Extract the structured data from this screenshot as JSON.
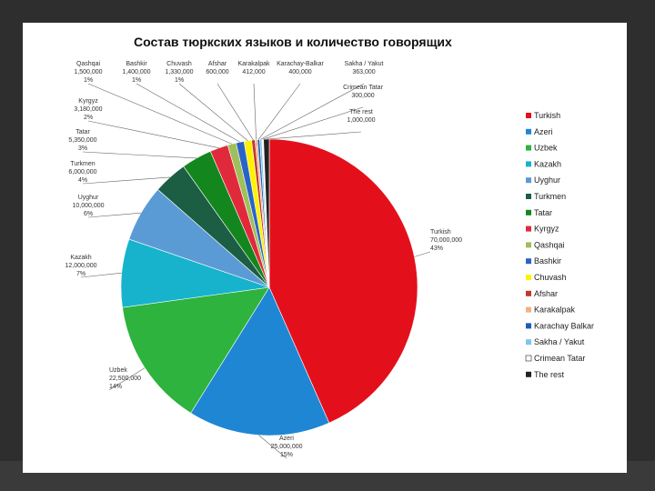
{
  "chart_data": {
    "type": "pie",
    "title": "Состав тюркских языков и количество говорящих",
    "slices": [
      {
        "name": "Turkish",
        "value": 70000000,
        "pct_label": "43%",
        "value_label": "70,000,000",
        "color": "#e3101c"
      },
      {
        "name": "Azeri",
        "value": 25000000,
        "pct_label": "15%",
        "value_label": "25,000,000",
        "color": "#1f86d3"
      },
      {
        "name": "Uzbek",
        "value": 22500000,
        "pct_label": "14%",
        "value_label": "22,500,000",
        "color": "#2db33e"
      },
      {
        "name": "Kazakh",
        "value": 12000000,
        "pct_label": "7%",
        "value_label": "12,000,000",
        "color": "#17b3cc"
      },
      {
        "name": "Uyghur",
        "value": 10000000,
        "pct_label": "6%",
        "value_label": "10,000,000",
        "color": "#5b9bd5"
      },
      {
        "name": "Turkmen",
        "value": 6000000,
        "pct_label": "4%",
        "value_label": "6,000,000",
        "color": "#1b5e44"
      },
      {
        "name": "Tatar",
        "value": 5350000,
        "pct_label": "3%",
        "value_label": "5,350,000",
        "color": "#14861e"
      },
      {
        "name": "Kyrgyz",
        "value": 3180000,
        "pct_label": "2%",
        "value_label": "3,180,000",
        "color": "#e02a3b"
      },
      {
        "name": "Qashqai",
        "value": 1500000,
        "pct_label": "1%",
        "value_label": "1,500,000",
        "color": "#9fbf5a"
      },
      {
        "name": "Bashkir",
        "value": 1400000,
        "pct_label": "1%",
        "value_label": "1,400,000",
        "color": "#2a63c8"
      },
      {
        "name": "Chuvash",
        "value": 1330000,
        "pct_label": "1%",
        "value_label": "1,330,000",
        "color": "#fff200"
      },
      {
        "name": "Afshar",
        "value": 600000,
        "pct_label": "",
        "value_label": "600,000",
        "color": "#c0392b"
      },
      {
        "name": "Karakalpak",
        "value": 412000,
        "pct_label": "",
        "value_label": "412,000",
        "color": "#f4b183"
      },
      {
        "name": "Karachay-Balkar",
        "value": 400000,
        "pct_label": "",
        "value_label": "400,000",
        "color": "#1f5bb8"
      },
      {
        "name": "Sakha / Yakut",
        "value": 363000,
        "pct_label": "",
        "value_label": "363,000",
        "color": "#7fc6e8"
      },
      {
        "name": "Crimean Tatar",
        "value": 300000,
        "pct_label": "",
        "value_label": "300,000",
        "color": "#ffffff"
      },
      {
        "name": "The rest",
        "value": 1000000,
        "pct_label": "",
        "value_label": "1,000,000",
        "color": "#222222"
      }
    ],
    "legend": {
      "placement": "right",
      "entries": [
        "Turkish",
        "Azeri",
        "Uzbek",
        "Kazakh",
        "Uyghur",
        "Turkmen",
        "Tatar",
        "Kyrgyz",
        "Qashqai",
        "Bashkir",
        "Chuvash",
        "Afshar",
        "Karakalpak",
        "Karachay Balkar",
        "Sakha / Yakut",
        "Crimean Tatar",
        "The rest"
      ]
    }
  }
}
